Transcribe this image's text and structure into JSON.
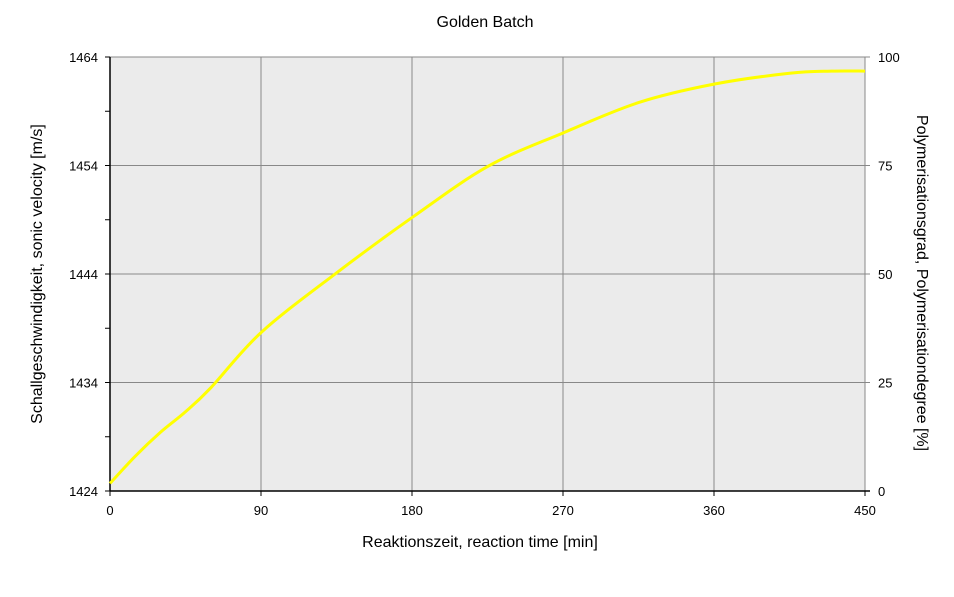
{
  "chart_data": {
    "type": "line",
    "title": "Golden Batch",
    "xlabel": "Reaktionszeit, reaction time [min]",
    "ylabel": "Schallgeschwindigkeit, sonic velocity [m/s]",
    "y2label": "Polymerisationsgrad, Polymerisationdegree [%]",
    "xlim": [
      0,
      450
    ],
    "ylim": [
      1424,
      1464
    ],
    "y2lim": [
      0,
      100
    ],
    "xticks": [
      "0",
      "90",
      "180",
      "270",
      "360",
      "450"
    ],
    "yticks": [
      "1424",
      "1434",
      "1444",
      "1454",
      "1464"
    ],
    "y2ticks": [
      "0",
      "25",
      "50",
      "75",
      "100"
    ],
    "grid": true,
    "plot_background": "#ebebeb",
    "series": [
      {
        "color": "#ffff00",
        "x": [
          0,
          15,
          30,
          45,
          60,
          90,
          135,
          180,
          225,
          270,
          315,
          360,
          405,
          430,
          450
        ],
        "y": [
          1424.7,
          1427.2,
          1429.4,
          1431.3,
          1433.5,
          1438.6,
          1444.1,
          1449.2,
          1453.9,
          1457.0,
          1459.8,
          1461.5,
          1462.5,
          1462.7,
          1462.7
        ]
      }
    ]
  }
}
